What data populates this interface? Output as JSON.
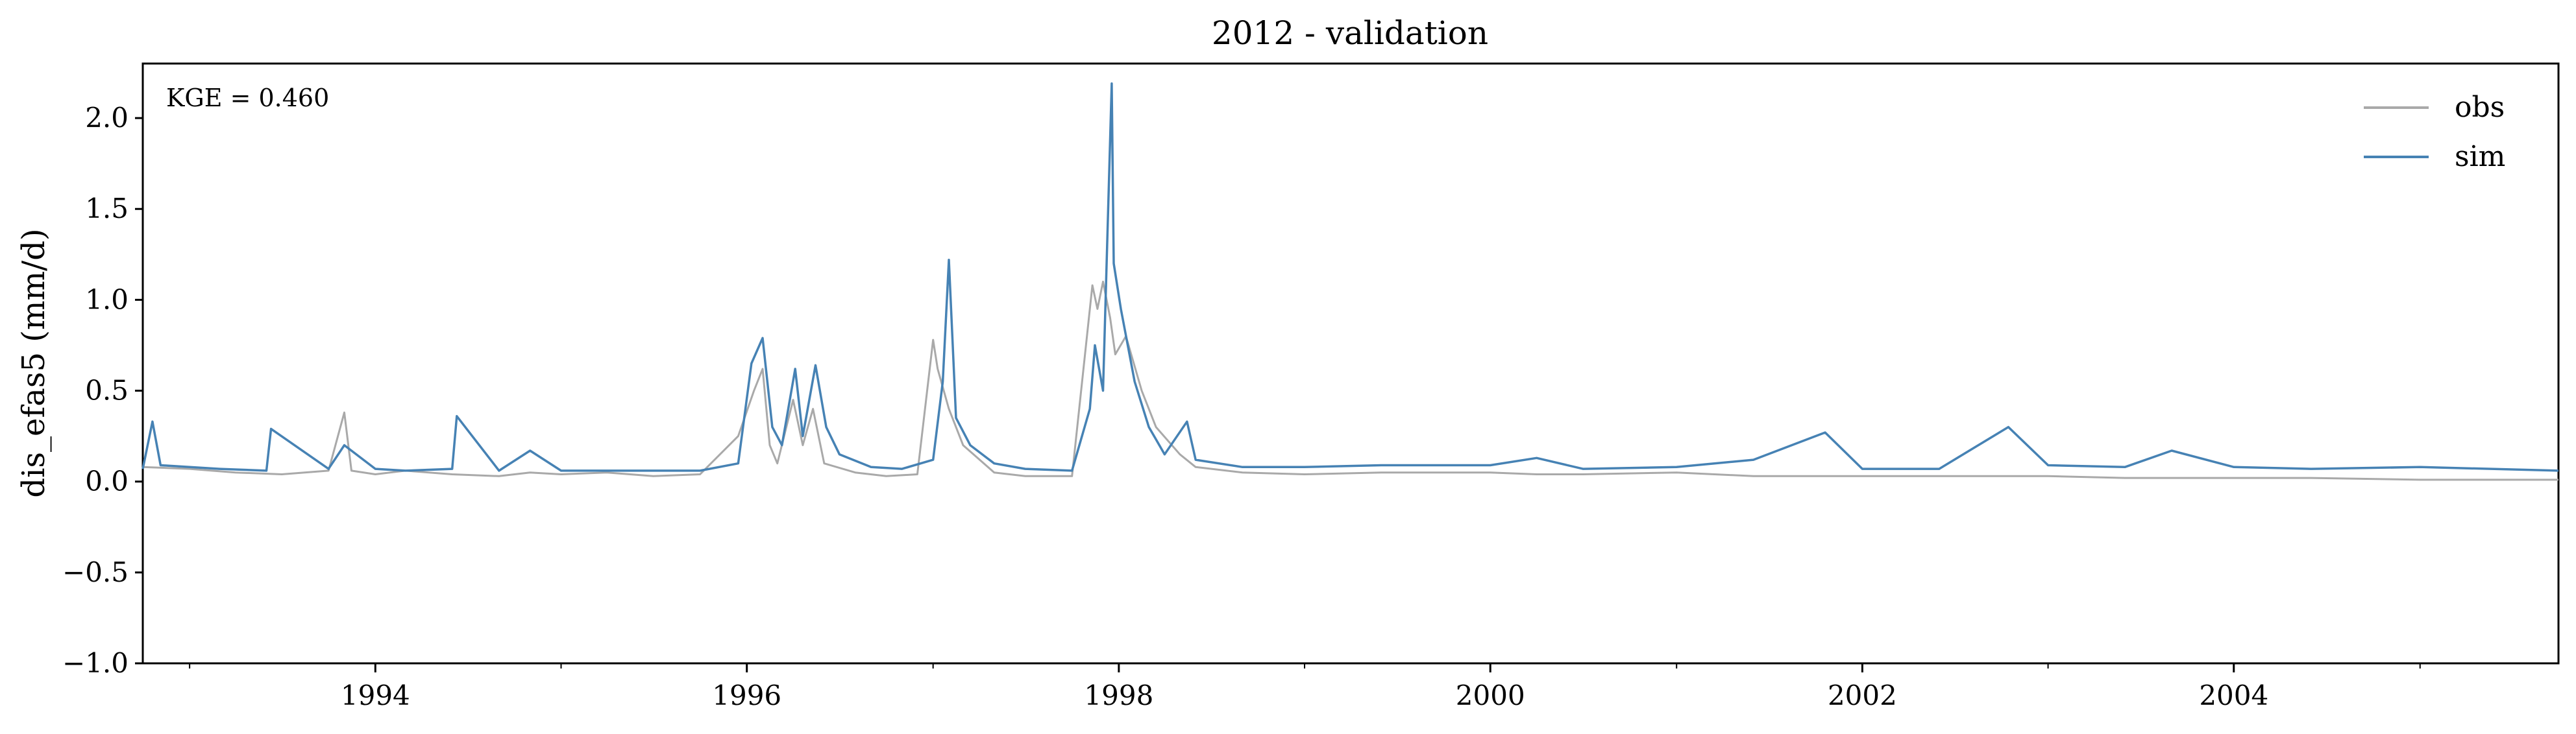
{
  "chart_data": {
    "type": "line",
    "title": "2012 - validation",
    "ylabel": "dis_efas5 (mm/d)",
    "xlabel": "",
    "xlim": [
      "1992-10-01",
      "2005-09-30"
    ],
    "ylim": [
      -1.0,
      2.3
    ],
    "yticks": [
      -1.0,
      -0.5,
      0.0,
      0.5,
      1.0,
      1.5,
      2.0
    ],
    "ytick_labels": [
      "−1.0",
      "−0.5",
      "0.0",
      "0.5",
      "1.0",
      "1.5",
      "2.0"
    ],
    "xtick_labels": [
      "1994",
      "1996",
      "1998",
      "2000",
      "2002",
      "2004"
    ],
    "xticks": [
      "1994-01-01",
      "1996-01-01",
      "1998-01-01",
      "2000-01-01",
      "2002-01-01",
      "2004-01-01"
    ],
    "annotation": "KGE = 0.460",
    "legend_position": "top-right",
    "grid": false,
    "series": [
      {
        "name": "obs",
        "color": "#a9a9a9",
        "x": [
          "1992-10-01",
          "1993-01-01",
          "1993-04-01",
          "1993-07-01",
          "1993-10-01",
          "1993-11-01",
          "1993-11-15",
          "1994-01-01",
          "1994-03-01",
          "1994-06-01",
          "1994-09-01",
          "1994-11-01",
          "1995-01-01",
          "1995-04-01",
          "1995-07-01",
          "1995-10-01",
          "1995-12-15",
          "1996-01-15",
          "1996-02-01",
          "1996-02-15",
          "1996-03-01",
          "1996-04-01",
          "1996-04-20",
          "1996-05-10",
          "1996-06-01",
          "1996-08-01",
          "1996-10-01",
          "1996-12-01",
          "1997-01-01",
          "1997-01-10",
          "1997-02-01",
          "1997-03-01",
          "1997-05-01",
          "1997-07-01",
          "1997-10-01",
          "1997-11-10",
          "1997-11-20",
          "1997-12-01",
          "1997-12-15",
          "1997-12-25",
          "1998-01-15",
          "1998-02-15",
          "1998-03-15",
          "1998-05-01",
          "1998-06-01",
          "1998-09-01",
          "1999-01-01",
          "1999-06-01",
          "2000-01-01",
          "2000-04-01",
          "2000-07-01",
          "2001-01-01",
          "2001-06-01",
          "2002-01-01",
          "2002-06-01",
          "2003-01-01",
          "2003-06-01",
          "2004-01-01",
          "2004-06-01",
          "2005-01-01",
          "2005-09-30"
        ],
        "values": [
          0.08,
          0.07,
          0.05,
          0.04,
          0.06,
          0.38,
          0.06,
          0.04,
          0.06,
          0.04,
          0.03,
          0.05,
          0.04,
          0.05,
          0.03,
          0.04,
          0.25,
          0.5,
          0.62,
          0.2,
          0.1,
          0.45,
          0.2,
          0.4,
          0.1,
          0.05,
          0.03,
          0.04,
          0.78,
          0.62,
          0.4,
          0.2,
          0.05,
          0.03,
          0.03,
          1.08,
          0.95,
          1.1,
          0.9,
          0.7,
          0.8,
          0.5,
          0.3,
          0.15,
          0.08,
          0.05,
          0.04,
          0.05,
          0.05,
          0.04,
          0.04,
          0.05,
          0.03,
          0.03,
          0.03,
          0.03,
          0.02,
          0.02,
          0.02,
          0.01,
          0.01
        ]
      },
      {
        "name": "sim",
        "color": "#4682b4",
        "x": [
          "1992-10-01",
          "1992-10-20",
          "1992-11-05",
          "1993-01-01",
          "1993-03-01",
          "1993-06-01",
          "1993-06-10",
          "1993-10-01",
          "1993-11-01",
          "1994-01-01",
          "1994-03-01",
          "1994-06-01",
          "1994-06-10",
          "1994-09-01",
          "1994-11-01",
          "1995-01-01",
          "1995-04-01",
          "1995-07-01",
          "1995-10-01",
          "1995-12-15",
          "1996-01-10",
          "1996-02-01",
          "1996-02-20",
          "1996-03-10",
          "1996-04-05",
          "1996-04-20",
          "1996-05-15",
          "1996-06-05",
          "1996-07-01",
          "1996-09-01",
          "1996-11-01",
          "1997-01-01",
          "1997-01-20",
          "1997-02-01",
          "1997-02-15",
          "1997-03-15",
          "1997-05-01",
          "1997-07-01",
          "1997-10-01",
          "1997-11-05",
          "1997-11-15",
          "1997-12-01",
          "1997-12-18",
          "1997-12-22",
          "1998-01-05",
          "1998-02-01",
          "1998-03-01",
          "1998-04-01",
          "1998-05-15",
          "1998-06-01",
          "1998-09-01",
          "1999-01-01",
          "1999-06-01",
          "2000-01-01",
          "2000-04-01",
          "2000-07-01",
          "2001-01-01",
          "2001-06-01",
          "2001-10-20",
          "2002-01-01",
          "2002-06-01",
          "2002-10-15",
          "2003-01-01",
          "2003-06-01",
          "2003-09-01",
          "2004-01-01",
          "2004-06-01",
          "2005-01-01",
          "2005-09-30"
        ],
        "values": [
          0.07,
          0.33,
          0.09,
          0.08,
          0.07,
          0.06,
          0.29,
          0.07,
          0.2,
          0.07,
          0.06,
          0.07,
          0.36,
          0.06,
          0.17,
          0.06,
          0.06,
          0.06,
          0.06,
          0.1,
          0.65,
          0.79,
          0.3,
          0.2,
          0.62,
          0.25,
          0.64,
          0.3,
          0.15,
          0.08,
          0.07,
          0.12,
          0.55,
          1.22,
          0.35,
          0.2,
          0.1,
          0.07,
          0.06,
          0.4,
          0.75,
          0.5,
          2.19,
          1.2,
          0.95,
          0.55,
          0.3,
          0.15,
          0.33,
          0.12,
          0.08,
          0.08,
          0.09,
          0.09,
          0.13,
          0.07,
          0.08,
          0.12,
          0.27,
          0.07,
          0.07,
          0.3,
          0.09,
          0.08,
          0.17,
          0.08,
          0.07,
          0.08,
          0.06
        ]
      }
    ]
  }
}
